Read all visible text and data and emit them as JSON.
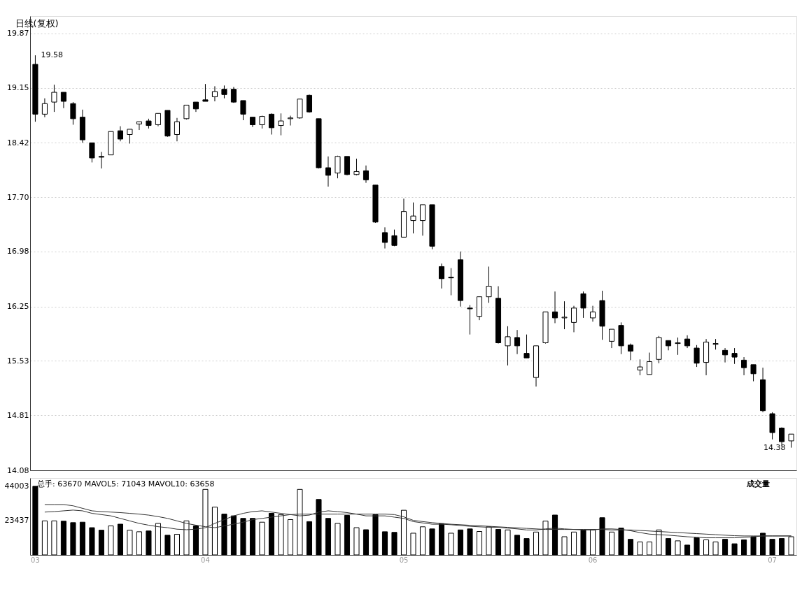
{
  "chart_data": [
    {
      "type": "candlestick",
      "title": "日线(复权)",
      "color": "#000000",
      "categories": [
        "03",
        null,
        null,
        null,
        null,
        null,
        null,
        null,
        null,
        null,
        null,
        null,
        null,
        null,
        null,
        null,
        null,
        null,
        "04",
        null,
        null,
        null,
        null,
        null,
        null,
        null,
        null,
        null,
        null,
        null,
        null,
        null,
        null,
        null,
        null,
        null,
        null,
        null,
        null,
        "05",
        null,
        null,
        null,
        null,
        null,
        null,
        null,
        null,
        null,
        null,
        null,
        null,
        null,
        null,
        null,
        null,
        null,
        null,
        null,
        "06",
        null,
        null,
        null,
        null,
        null,
        null,
        null,
        null,
        null,
        null,
        null,
        null,
        null,
        null,
        null,
        null,
        null,
        null,
        "07",
        null,
        null
      ],
      "ohlc": [
        [
          19.46,
          19.58,
          18.7,
          18.8
        ],
        [
          18.8,
          19.01,
          18.76,
          18.94
        ],
        [
          18.96,
          19.19,
          18.83,
          19.09
        ],
        [
          19.09,
          19.09,
          18.88,
          18.97
        ],
        [
          18.94,
          18.96,
          18.66,
          18.74
        ],
        [
          18.76,
          18.86,
          18.42,
          18.46
        ],
        [
          18.42,
          18.42,
          18.16,
          18.22
        ],
        [
          18.24,
          18.3,
          18.08,
          18.23
        ],
        [
          18.26,
          18.57,
          18.26,
          18.57
        ],
        [
          18.58,
          18.64,
          18.44,
          18.47
        ],
        [
          18.53,
          18.6,
          18.41,
          18.6
        ],
        [
          18.67,
          18.7,
          18.59,
          18.7
        ],
        [
          18.71,
          18.74,
          18.61,
          18.65
        ],
        [
          18.66,
          18.81,
          18.64,
          18.81
        ],
        [
          18.85,
          18.85,
          18.5,
          18.51
        ],
        [
          18.53,
          18.75,
          18.44,
          18.7
        ],
        [
          18.74,
          18.92,
          18.73,
          18.92
        ],
        [
          18.96,
          18.96,
          18.83,
          18.87
        ],
        [
          18.99,
          19.2,
          18.97,
          18.97
        ],
        [
          19.03,
          19.17,
          18.97,
          19.1
        ],
        [
          19.13,
          19.18,
          19.01,
          19.06
        ],
        [
          19.13,
          19.16,
          18.95,
          18.96
        ],
        [
          18.98,
          18.98,
          18.72,
          18.8
        ],
        [
          18.76,
          18.76,
          18.63,
          18.66
        ],
        [
          18.66,
          18.78,
          18.61,
          18.77
        ],
        [
          18.8,
          18.81,
          18.53,
          18.62
        ],
        [
          18.65,
          18.81,
          18.52,
          18.71
        ],
        [
          18.74,
          18.78,
          18.65,
          18.75
        ],
        [
          18.75,
          19.0,
          18.74,
          19.0
        ],
        [
          19.05,
          19.06,
          18.82,
          18.83
        ],
        [
          18.74,
          18.74,
          18.08,
          18.09
        ],
        [
          18.09,
          18.24,
          17.84,
          17.99
        ],
        [
          18.02,
          18.25,
          17.95,
          18.24
        ],
        [
          18.24,
          18.24,
          17.99,
          18.0
        ],
        [
          18.0,
          18.21,
          17.99,
          18.04
        ],
        [
          18.05,
          18.12,
          17.89,
          17.93
        ],
        [
          17.86,
          17.86,
          17.36,
          17.37
        ],
        [
          17.23,
          17.3,
          17.02,
          17.1
        ],
        [
          17.19,
          17.27,
          17.05,
          17.06
        ],
        [
          17.17,
          17.68,
          17.17,
          17.51
        ],
        [
          17.39,
          17.63,
          17.22,
          17.45
        ],
        [
          17.39,
          17.6,
          17.19,
          17.6
        ],
        [
          17.6,
          17.6,
          17.01,
          17.05
        ],
        [
          16.78,
          16.82,
          16.49,
          16.62
        ],
        [
          16.64,
          16.76,
          16.4,
          16.63
        ],
        [
          16.87,
          16.98,
          16.25,
          16.33
        ],
        [
          16.23,
          16.27,
          15.88,
          16.22
        ],
        [
          16.12,
          16.38,
          16.07,
          16.38
        ],
        [
          16.38,
          16.78,
          16.3,
          16.52
        ],
        [
          16.36,
          16.52,
          15.76,
          15.77
        ],
        [
          15.73,
          15.99,
          15.47,
          15.85
        ],
        [
          15.84,
          15.94,
          15.62,
          15.73
        ],
        [
          15.63,
          15.88,
          15.57,
          15.57
        ],
        [
          15.31,
          15.73,
          15.19,
          15.73
        ],
        [
          15.77,
          16.18,
          15.76,
          16.18
        ],
        [
          16.18,
          16.45,
          16.03,
          16.1
        ],
        [
          16.1,
          16.32,
          15.95,
          16.11
        ],
        [
          16.04,
          16.26,
          15.91,
          16.23
        ],
        [
          16.42,
          16.45,
          16.1,
          16.23
        ],
        [
          16.1,
          16.26,
          16.05,
          16.18
        ],
        [
          16.33,
          16.46,
          15.81,
          15.99
        ],
        [
          15.79,
          15.95,
          15.7,
          15.95
        ],
        [
          16.0,
          16.04,
          15.62,
          15.73
        ],
        [
          15.74,
          15.76,
          15.54,
          15.66
        ],
        [
          15.41,
          15.55,
          15.34,
          15.45
        ],
        [
          15.35,
          15.64,
          15.35,
          15.52
        ],
        [
          15.55,
          15.86,
          15.5,
          15.84
        ],
        [
          15.8,
          15.8,
          15.67,
          15.73
        ],
        [
          15.76,
          15.84,
          15.61,
          15.77
        ],
        [
          15.82,
          15.87,
          15.7,
          15.73
        ],
        [
          15.7,
          15.74,
          15.45,
          15.5
        ],
        [
          15.51,
          15.82,
          15.34,
          15.78
        ],
        [
          15.75,
          15.82,
          15.68,
          15.76
        ],
        [
          15.67,
          15.7,
          15.51,
          15.61
        ],
        [
          15.63,
          15.7,
          15.49,
          15.58
        ],
        [
          15.54,
          15.58,
          15.34,
          15.44
        ],
        [
          15.48,
          15.48,
          15.26,
          15.36
        ],
        [
          15.28,
          15.44,
          14.85,
          14.87
        ],
        [
          14.83,
          14.85,
          14.49,
          14.58
        ],
        [
          14.64,
          14.65,
          14.41,
          14.46
        ],
        [
          14.47,
          14.56,
          14.38,
          14.56
        ]
      ],
      "ylim": [
        14.08,
        20.1
      ],
      "yticks": [
        14.08,
        14.81,
        15.53,
        16.25,
        16.98,
        {
          "value": 17.7,
          "label": "17.70"
        },
        18.42,
        19.15,
        19.87
      ],
      "grid": "y",
      "tick_labels": "y",
      "annotations": [
        "19.58",
        "14.38"
      ]
    },
    {
      "type": "bar",
      "categories": [
        "03",
        null,
        null,
        null,
        null,
        null,
        null,
        null,
        null,
        null,
        null,
        null,
        null,
        null,
        null,
        null,
        null,
        null,
        "04",
        null,
        null,
        null,
        null,
        null,
        null,
        null,
        null,
        null,
        null,
        null,
        null,
        null,
        null,
        null,
        null,
        null,
        null,
        null,
        null,
        "05",
        null,
        null,
        null,
        null,
        null,
        null,
        null,
        null,
        null,
        null,
        null,
        null,
        null,
        null,
        null,
        null,
        null,
        null,
        null,
        "06",
        null,
        null,
        null,
        null,
        null,
        null,
        null,
        null,
        null,
        null,
        null,
        null,
        null,
        null,
        null,
        null,
        null,
        null,
        "07",
        null,
        null
      ],
      "series": [
        {
          "type": "bar",
          "values": [
            44003,
            23070,
            23070,
            22900,
            22000,
            22280,
            18960,
            17440,
            20020,
            21090,
            17440,
            16490,
            16980,
            21540,
            14390,
            14960,
            23070,
            20020,
            42100,
            31410,
            27180,
            26110,
            24590,
            24590,
            22280,
            27640,
            26850,
            23850,
            42100,
            22610,
            36010,
            24590,
            21540,
            26400,
            18960,
            17720,
            26850,
            16490,
            16120,
            29500,
            15620,
            19490,
            18220,
            21380,
            15620,
            17600,
            18220,
            16650,
            19490,
            17890,
            17600,
            14390,
            12380,
            16320,
            22940,
            26600,
            13490,
            16320,
            17600,
            17600,
            25000,
            16320,
            18710,
            11930,
            10330,
            10330,
            17600,
            12380,
            11000,
            8440,
            12830,
            11600,
            10330,
            11930,
            9220,
            11600,
            13490,
            15620,
            11930,
            12380,
            13490
          ],
          "colors": [
            "#000000",
            "#ffffff",
            "#ffffff",
            "#000000",
            "#000000",
            "#000000",
            "#000000",
            "#000000",
            "#ffffff",
            "#000000",
            "#ffffff",
            "#ffffff",
            "#000000",
            "#ffffff",
            "#000000",
            "#ffffff",
            "#ffffff",
            "#000000",
            "#ffffff",
            "#ffffff",
            "#000000",
            "#000000",
            "#000000",
            "#000000",
            "#ffffff",
            "#000000",
            "#ffffff",
            "#ffffff",
            "#ffffff",
            "#000000",
            "#000000",
            "#000000",
            "#ffffff",
            "#000000",
            "#ffffff",
            "#000000",
            "#000000",
            "#000000",
            "#000000",
            "#ffffff",
            "#ffffff",
            "#ffffff",
            "#000000",
            "#000000",
            "#ffffff",
            "#000000",
            "#000000",
            "#ffffff",
            "#ffffff",
            "#000000",
            "#ffffff",
            "#000000",
            "#000000",
            "#ffffff",
            "#ffffff",
            "#000000",
            "#ffffff",
            "#ffffff",
            "#000000",
            "#ffffff",
            "#000000",
            "#ffffff",
            "#000000",
            "#000000",
            "#ffffff",
            "#ffffff",
            "#ffffff",
            "#000000",
            "#ffffff",
            "#000000",
            "#000000",
            "#ffffff",
            "#ffffff",
            "#000000",
            "#000000",
            "#000000",
            "#000000",
            "#000000",
            "#000000",
            "#000000",
            "#ffffff"
          ]
        },
        {
          "type": "line",
          "color": "#333333",
          "values": [
            null,
            28390,
            28690,
            29150,
            29600,
            29150,
            27630,
            26870,
            26110,
            24580,
            23060,
            21540,
            20470,
            19560,
            18950,
            18040,
            17730,
            18040,
            18950,
            21540,
            23820,
            26110,
            27630,
            28690,
            29150,
            28390,
            27630,
            26870,
            26110,
            26560,
            28390,
            29150,
            28690,
            28080,
            27170,
            26110,
            26110,
            26110,
            25340,
            24580,
            22640,
            21850,
            21060,
            21060,
            20740,
            20270,
            19790,
            19480,
            19160,
            19160,
            18690,
            18220,
            17580,
            17580,
            18220,
            18690,
            18220,
            17900,
            17580,
            17580,
            18220,
            18220,
            17900,
            17110,
            16000,
            15050,
            14740,
            14420,
            13950,
            13470,
            13150,
            12840,
            12840,
            12840,
            12840,
            13150,
            13470,
            13950,
            13950,
            13950,
            13950
          ]
        },
        {
          "type": "line",
          "color": "#333333",
          "values": [
            null,
            32950,
            32950,
            32950,
            32200,
            30670,
            29150,
            28690,
            28390,
            28080,
            27630,
            27170,
            26560,
            25650,
            24580,
            23060,
            21540,
            20470,
            19560,
            18950,
            20020,
            21080,
            22300,
            23820,
            24580,
            25340,
            26110,
            26870,
            27170,
            27170,
            27170,
            27170,
            27170,
            27170,
            27170,
            27170,
            27170,
            27170,
            26870,
            25500,
            23400,
            22640,
            22000,
            21500,
            21060,
            20740,
            20430,
            20110,
            19790,
            19480,
            19160,
            18850,
            18530,
            18220,
            17900,
            17900,
            17900,
            17900,
            17900,
            17900,
            17900,
            17580,
            17580,
            17580,
            17270,
            16950,
            16630,
            16320,
            16000,
            15680,
            15370,
            15050,
            14740,
            14420,
            14110,
            13950,
            13950,
            13950,
            13950,
            13950,
            13950
          ]
        }
      ],
      "ylim": [
        2500,
        49000
      ],
      "yticks": [
        23437,
        44003
      ],
      "annotations": [
        "总手: 63670 MAVOL5: 71043 MAVOL10: 63658",
        "成交量"
      ]
    }
  ]
}
